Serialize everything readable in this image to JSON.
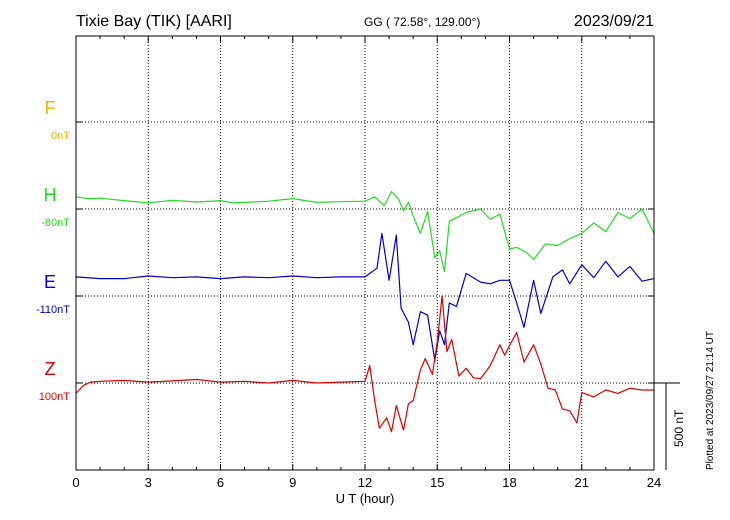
{
  "header": {
    "station": "Tixie Bay (TIK)  [AARI]",
    "coords": "GG ( 72.58°, 129.00°)",
    "date": "2023/09/21"
  },
  "footer": {
    "plotted": "Plotted at 2023/09/27 21:14 UT"
  },
  "scale": {
    "label": "500 nT"
  },
  "chart_data": {
    "type": "line",
    "xlabel": "U T (hour)",
    "xlim": [
      0,
      24
    ],
    "xticks": [
      "0",
      "3",
      "6",
      "9",
      "12",
      "15",
      "18",
      "21",
      "24"
    ],
    "scale_nT_per_gridline": 500,
    "colors": {
      "F": "#f0b000",
      "H": "#22dd22",
      "E": "#0000cc",
      "Z": "#dd0000"
    },
    "series": [
      {
        "name": "F",
        "baseline_label": "0nT",
        "x": [],
        "values": []
      },
      {
        "name": "H",
        "baseline_label": "-80nT",
        "x": [
          0,
          0.5,
          1,
          2,
          3,
          4,
          5,
          6,
          6.5,
          7,
          8,
          9,
          10,
          11,
          12,
          12.4,
          12.8,
          13.1,
          13.4,
          13.6,
          13.8,
          14.0,
          14.3,
          14.6,
          14.9,
          15.1,
          15.3,
          15.5,
          15.8,
          16.2,
          16.8,
          17.2,
          17.6,
          18.0,
          18.3,
          18.7,
          19.0,
          19.5,
          20.0,
          20.5,
          21.0,
          21.5,
          22.0,
          22.5,
          23.0,
          23.5,
          24.0
        ],
        "values": [
          70,
          60,
          62,
          48,
          35,
          50,
          40,
          48,
          35,
          38,
          45,
          60,
          38,
          42,
          45,
          70,
          20,
          100,
          55,
          -10,
          40,
          -40,
          -140,
          -15,
          -280,
          -240,
          -360,
          -70,
          -50,
          -20,
          0,
          -60,
          -30,
          -230,
          -220,
          -250,
          -290,
          -200,
          -210,
          -170,
          -140,
          -80,
          -130,
          -20,
          -55,
          0,
          -140
        ]
      },
      {
        "name": "E",
        "baseline_label": "-110nT",
        "x": [
          0,
          1,
          2,
          3,
          4,
          5,
          6,
          7,
          8,
          9,
          10,
          11,
          12,
          12.5,
          12.7,
          13.0,
          13.3,
          13.5,
          13.8,
          14.0,
          14.3,
          14.6,
          14.9,
          15.1,
          15.3,
          15.5,
          15.8,
          16.2,
          16.8,
          17.2,
          17.6,
          18.0,
          18.3,
          18.6,
          19.0,
          19.3,
          19.8,
          20.2,
          20.5,
          21.0,
          21.5,
          22.0,
          22.5,
          23.0,
          23.5,
          24.0
        ],
        "values": [
          110,
          100,
          100,
          115,
          105,
          110,
          100,
          110,
          105,
          115,
          105,
          110,
          110,
          160,
          360,
          90,
          350,
          -70,
          -150,
          -280,
          -90,
          -110,
          -370,
          -200,
          -280,
          -40,
          -60,
          130,
          80,
          70,
          90,
          90,
          -40,
          -180,
          90,
          -100,
          110,
          150,
          70,
          180,
          105,
          200,
          110,
          170,
          85,
          100
        ]
      },
      {
        "name": "Z",
        "baseline_label": "100nT",
        "x": [
          0,
          0.3,
          0.6,
          1,
          2,
          3,
          4,
          5,
          6,
          7,
          8,
          9,
          10,
          11,
          12,
          12.2,
          12.4,
          12.6,
          12.9,
          13.1,
          13.3,
          13.6,
          13.8,
          14.0,
          14.3,
          14.5,
          14.8,
          15.0,
          15.2,
          15.4,
          15.6,
          15.9,
          16.2,
          16.5,
          16.8,
          17.2,
          17.6,
          17.8,
          18.0,
          18.3,
          18.6,
          19.0,
          19.3,
          19.6,
          19.9,
          20.2,
          20.5,
          20.8,
          21.0,
          21.5,
          22.0,
          22.5,
          23.0,
          23.5,
          24.0
        ],
        "values": [
          -60,
          -15,
          5,
          10,
          15,
          5,
          12,
          20,
          5,
          10,
          0,
          15,
          0,
          5,
          10,
          100,
          -100,
          -260,
          -200,
          -280,
          -130,
          -270,
          -120,
          -100,
          75,
          140,
          50,
          240,
          500,
          180,
          250,
          40,
          85,
          30,
          25,
          100,
          220,
          160,
          215,
          290,
          120,
          220,
          110,
          -30,
          -40,
          -150,
          -160,
          -230,
          -55,
          -80,
          -40,
          -60,
          -30,
          -40,
          -40
        ]
      }
    ]
  }
}
